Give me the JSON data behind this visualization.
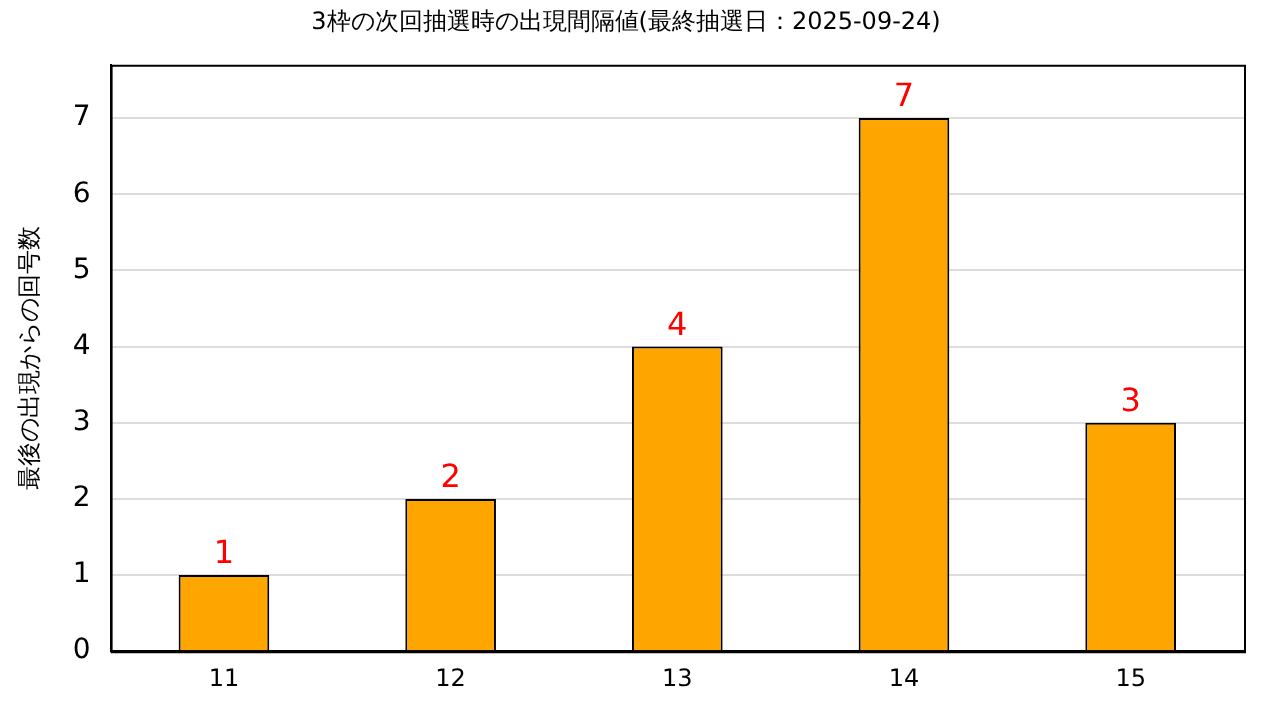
{
  "chart_data": {
    "type": "bar",
    "title": "3枠の次回抽選時の出現間隔値(最終抽選日：2025-09-24)",
    "ylabel": "最後の出現からの回号数",
    "categories": [
      "11",
      "12",
      "13",
      "14",
      "15"
    ],
    "values": [
      1,
      2,
      4,
      7,
      3
    ],
    "color": "#ffa500",
    "ylim": [
      0,
      7.7
    ],
    "yticks": [
      0,
      1,
      2,
      3,
      4,
      5,
      6,
      7
    ],
    "grid": "y",
    "data_labels": true,
    "legend": false
  }
}
